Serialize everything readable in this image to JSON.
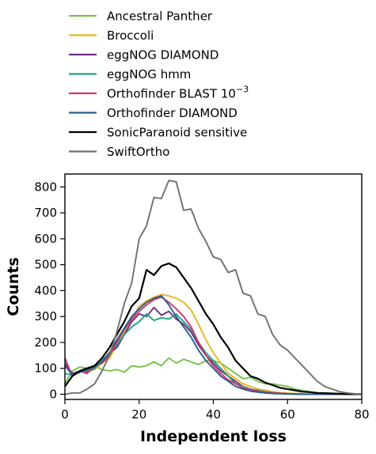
{
  "chart_data": {
    "type": "line",
    "title": "",
    "xlabel": "Independent loss",
    "ylabel": "Counts",
    "xlim": [
      0,
      80
    ],
    "ylim": [
      -20,
      850
    ],
    "xticks": [
      0,
      20,
      40,
      60,
      80
    ],
    "yticks": [
      0,
      100,
      200,
      300,
      400,
      500,
      600,
      700,
      800
    ],
    "grid": false,
    "legend_position": "top-left, above plot",
    "series": [
      {
        "name": "Ancestral Panther",
        "color": "#77c14b",
        "x": [
          0,
          2,
          4,
          6,
          8,
          10,
          12,
          14,
          16,
          18,
          20,
          22,
          24,
          26,
          28,
          30,
          32,
          34,
          36,
          38,
          40,
          42,
          44,
          46,
          48,
          50,
          52,
          54,
          56,
          58,
          60,
          62,
          64,
          66,
          68,
          70,
          72,
          74,
          76,
          78,
          80
        ],
        "y": [
          40,
          90,
          105,
          100,
          110,
          95,
          90,
          95,
          85,
          110,
          105,
          110,
          125,
          110,
          140,
          120,
          135,
          125,
          115,
          130,
          130,
          120,
          100,
          80,
          60,
          65,
          50,
          40,
          40,
          35,
          30,
          20,
          15,
          10,
          5,
          5,
          3,
          2,
          1,
          0,
          0
        ]
      },
      {
        "name": "Broccoli",
        "color": "#e8b623",
        "x": [
          0,
          2,
          4,
          6,
          8,
          10,
          12,
          14,
          16,
          18,
          20,
          22,
          24,
          26,
          28,
          30,
          32,
          34,
          36,
          38,
          40,
          42,
          44,
          46,
          48,
          50,
          52,
          54,
          56,
          58,
          60,
          62,
          64,
          66,
          68,
          70,
          72,
          74,
          76,
          78,
          80
        ],
        "y": [
          120,
          70,
          85,
          90,
          95,
          120,
          140,
          190,
          240,
          290,
          340,
          360,
          375,
          385,
          380,
          370,
          355,
          325,
          270,
          210,
          160,
          120,
          80,
          60,
          40,
          30,
          20,
          15,
          10,
          6,
          4,
          3,
          2,
          1,
          0,
          0,
          0,
          0,
          0,
          0,
          0
        ]
      },
      {
        "name": "eggNOG DIAMOND",
        "color": "#6b2e86",
        "x": [
          0,
          2,
          4,
          6,
          8,
          10,
          12,
          14,
          16,
          18,
          20,
          22,
          24,
          26,
          28,
          30,
          32,
          34,
          36,
          38,
          40,
          42,
          44,
          46,
          48,
          50,
          52,
          54,
          56,
          58,
          60,
          62,
          64,
          66,
          68,
          70,
          72,
          74,
          76,
          78,
          80
        ],
        "y": [
          120,
          80,
          90,
          85,
          100,
          130,
          160,
          180,
          230,
          280,
          310,
          300,
          335,
          305,
          320,
          290,
          270,
          240,
          190,
          150,
          120,
          90,
          70,
          50,
          30,
          20,
          12,
          8,
          5,
          3,
          2,
          1,
          0,
          0,
          0,
          0,
          0,
          0,
          0,
          0,
          0
        ]
      },
      {
        "name": "eggNOG hmm",
        "color": "#1fa67e",
        "x": [
          0,
          2,
          4,
          6,
          8,
          10,
          12,
          14,
          16,
          18,
          20,
          22,
          24,
          26,
          28,
          30,
          32,
          34,
          36,
          38,
          40,
          42,
          44,
          46,
          48,
          50,
          52,
          54,
          56,
          58,
          60,
          62,
          64,
          66,
          68,
          70,
          72,
          74,
          76,
          78,
          80
        ],
        "y": [
          80,
          75,
          85,
          90,
          100,
          130,
          160,
          190,
          230,
          260,
          280,
          310,
          285,
          295,
          290,
          310,
          280,
          250,
          200,
          160,
          130,
          100,
          70,
          40,
          30,
          20,
          15,
          10,
          6,
          3,
          2,
          1,
          0,
          0,
          0,
          0,
          0,
          0,
          0,
          0,
          0
        ]
      },
      {
        "name": "Orthofinder BLAST 10",
        "color": "#d6336c",
        "x": [
          0,
          2,
          4,
          6,
          8,
          10,
          12,
          14,
          16,
          18,
          20,
          22,
          24,
          26,
          28,
          30,
          32,
          34,
          36,
          38,
          40,
          42,
          44,
          46,
          48,
          50,
          52,
          54,
          56,
          58,
          60,
          62,
          64,
          66,
          68,
          70,
          72,
          74,
          76,
          78,
          80
        ],
        "y": [
          140,
          70,
          90,
          80,
          110,
          120,
          150,
          200,
          250,
          290,
          320,
          345,
          365,
          375,
          355,
          330,
          300,
          260,
          200,
          150,
          110,
          80,
          55,
          40,
          25,
          18,
          12,
          8,
          5,
          3,
          2,
          1,
          0,
          0,
          0,
          0,
          0,
          0,
          0,
          0,
          0
        ]
      },
      {
        "name": "Orthofinder DIAMOND",
        "color": "#275d8c",
        "x": [
          0,
          2,
          4,
          6,
          8,
          10,
          12,
          14,
          16,
          18,
          20,
          22,
          24,
          26,
          28,
          30,
          32,
          34,
          36,
          38,
          40,
          42,
          44,
          46,
          48,
          50,
          52,
          54,
          56,
          58,
          60,
          62,
          64,
          66,
          68,
          70,
          72,
          74,
          76,
          78,
          80
        ],
        "y": [
          110,
          75,
          85,
          95,
          105,
          125,
          160,
          210,
          255,
          300,
          330,
          355,
          370,
          380,
          345,
          300,
          260,
          220,
          170,
          130,
          100,
          70,
          50,
          30,
          20,
          12,
          8,
          5,
          3,
          2,
          1,
          0,
          0,
          0,
          0,
          0,
          0,
          0,
          0,
          0,
          0
        ]
      },
      {
        "name": "SonicParanoid sensitive",
        "color": "#000000",
        "x": [
          0,
          2,
          4,
          6,
          8,
          10,
          12,
          14,
          16,
          18,
          20,
          22,
          24,
          26,
          28,
          30,
          32,
          34,
          36,
          38,
          40,
          42,
          44,
          46,
          48,
          50,
          52,
          54,
          56,
          58,
          60,
          62,
          64,
          66,
          68,
          70,
          72,
          74,
          76,
          78,
          80
        ],
        "y": [
          30,
          70,
          90,
          100,
          110,
          140,
          180,
          230,
          280,
          340,
          370,
          480,
          460,
          495,
          505,
          490,
          450,
          410,
          360,
          310,
          270,
          220,
          180,
          130,
          100,
          70,
          60,
          45,
          35,
          25,
          20,
          15,
          10,
          8,
          5,
          4,
          3,
          2,
          1,
          0,
          0
        ]
      },
      {
        "name": "SwiftOrtho",
        "color": "#6f6f6f",
        "x": [
          0,
          2,
          4,
          6,
          8,
          10,
          12,
          14,
          16,
          18,
          20,
          22,
          24,
          26,
          28,
          30,
          32,
          34,
          36,
          38,
          40,
          42,
          44,
          46,
          48,
          50,
          52,
          54,
          56,
          58,
          60,
          62,
          64,
          66,
          68,
          70,
          72,
          74,
          76,
          78,
          80
        ],
        "y": [
          0,
          5,
          5,
          20,
          40,
          90,
          150,
          240,
          350,
          430,
          600,
          650,
          760,
          755,
          825,
          820,
          710,
          715,
          640,
          590,
          530,
          520,
          470,
          480,
          390,
          380,
          310,
          300,
          230,
          190,
          170,
          140,
          110,
          80,
          50,
          30,
          20,
          10,
          5,
          2,
          0
        ]
      }
    ]
  },
  "legend_superscripts": {
    "Orthofinder BLAST 10": "−3"
  }
}
